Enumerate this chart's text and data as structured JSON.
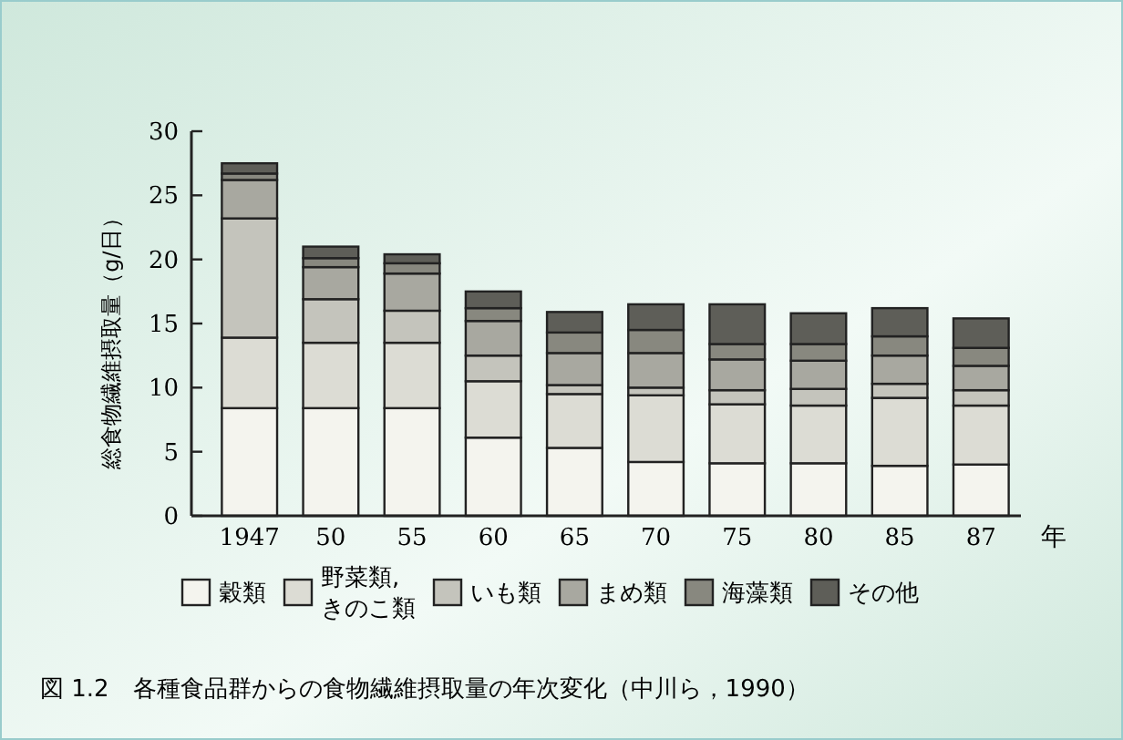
{
  "chart_data": {
    "type": "bar",
    "stacked": true,
    "ylabel": "総食物繊維摂取量（g/日）",
    "xlabel": "年",
    "categories": [
      "1947",
      "50",
      "55",
      "60",
      "65",
      "70",
      "75",
      "80",
      "85",
      "87"
    ],
    "ylim": [
      0,
      30
    ],
    "yticks": [
      0,
      5,
      10,
      15,
      20,
      25,
      30
    ],
    "legend": "bottom",
    "series": [
      {
        "name": "穀類",
        "color": "#f4f4ee",
        "values": [
          8.4,
          8.4,
          8.4,
          6.1,
          5.3,
          4.2,
          4.1,
          4.1,
          3.9,
          4.0
        ]
      },
      {
        "name": "野菜類,きのこ類",
        "color": "#dcdcd4",
        "values": [
          5.5,
          5.1,
          5.1,
          4.4,
          4.2,
          5.2,
          4.6,
          4.5,
          5.3,
          4.6
        ]
      },
      {
        "name": "いも類",
        "color": "#c4c4bc",
        "values": [
          9.3,
          3.4,
          2.5,
          2.0,
          0.7,
          0.6,
          1.1,
          1.3,
          1.1,
          1.2
        ]
      },
      {
        "name": "まめ類",
        "color": "#a8a8a0",
        "values": [
          3.0,
          2.5,
          2.9,
          2.7,
          2.5,
          2.7,
          2.4,
          2.2,
          2.2,
          1.9
        ]
      },
      {
        "name": "海藻類",
        "color": "#88887f",
        "values": [
          0.5,
          0.7,
          0.8,
          1.0,
          1.6,
          1.8,
          1.2,
          1.3,
          1.5,
          1.4
        ]
      },
      {
        "name": "その他",
        "color": "#5e5e58",
        "values": [
          0.8,
          0.9,
          0.7,
          1.3,
          1.6,
          2.0,
          3.1,
          2.4,
          2.2,
          2.3
        ]
      }
    ],
    "annotations": [
      "図 1.2　各種食品群からの食物繊維摂取量の年次変化（中川ら，1990）"
    ]
  }
}
